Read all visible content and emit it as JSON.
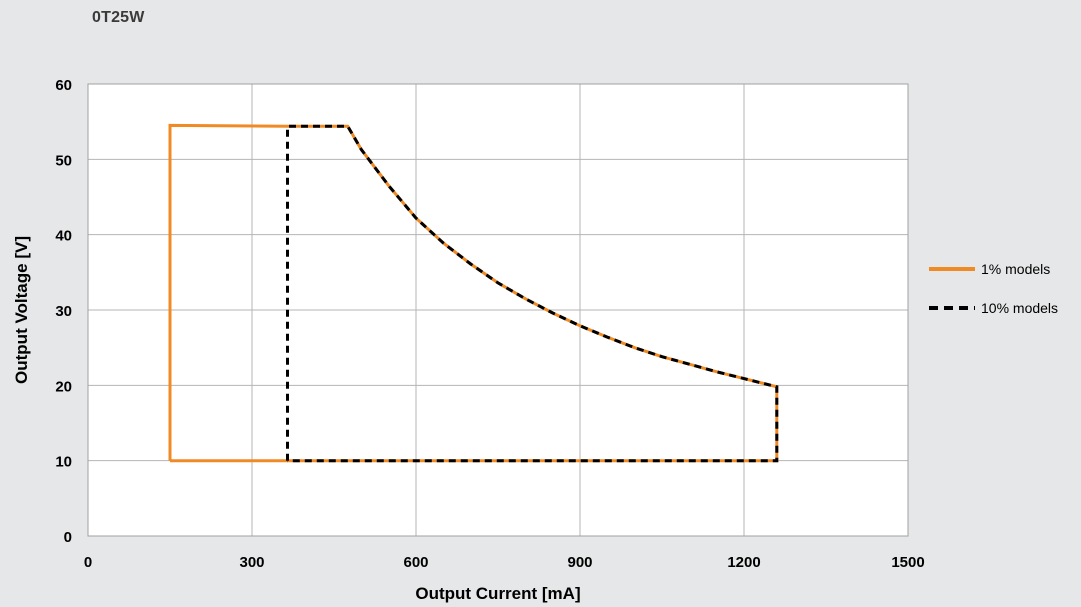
{
  "chart_data": {
    "type": "line",
    "title": "0T25W",
    "xlabel": "Output Current [mA]",
    "ylabel": "Output Voltage [V]",
    "xlim": [
      0,
      1500
    ],
    "ylim": [
      0,
      60
    ],
    "xticks": [
      0,
      300,
      600,
      900,
      1200,
      1500
    ],
    "yticks": [
      0,
      10,
      20,
      30,
      40,
      50,
      60
    ],
    "grid": true,
    "legend_position": "right",
    "series": [
      {
        "name": "1% models",
        "color": "#f08a24",
        "style": "solid",
        "points": [
          [
            150,
            10
          ],
          [
            150,
            54.5
          ],
          [
            365,
            54.4
          ],
          [
            475,
            54.4
          ],
          [
            500,
            51.3
          ],
          [
            550,
            46.5
          ],
          [
            600,
            42.2
          ],
          [
            650,
            38.9
          ],
          [
            700,
            36.1
          ],
          [
            750,
            33.6
          ],
          [
            800,
            31.5
          ],
          [
            850,
            29.6
          ],
          [
            900,
            27.9
          ],
          [
            950,
            26.4
          ],
          [
            1000,
            25.0
          ],
          [
            1050,
            23.8
          ],
          [
            1100,
            22.8
          ],
          [
            1150,
            21.8
          ],
          [
            1200,
            20.9
          ],
          [
            1260,
            19.8
          ],
          [
            1260,
            10
          ],
          [
            150,
            10
          ]
        ]
      },
      {
        "name": "10% models",
        "color": "#000000",
        "style": "dashed",
        "points": [
          [
            365,
            10
          ],
          [
            365,
            54.4
          ],
          [
            475,
            54.4
          ],
          [
            500,
            51.3
          ],
          [
            550,
            46.5
          ],
          [
            600,
            42.2
          ],
          [
            650,
            38.9
          ],
          [
            700,
            36.1
          ],
          [
            750,
            33.6
          ],
          [
            800,
            31.5
          ],
          [
            850,
            29.6
          ],
          [
            900,
            27.9
          ],
          [
            950,
            26.4
          ],
          [
            1000,
            25.0
          ],
          [
            1050,
            23.8
          ],
          [
            1100,
            22.8
          ],
          [
            1150,
            21.8
          ],
          [
            1200,
            20.9
          ],
          [
            1260,
            19.8
          ],
          [
            1260,
            10
          ],
          [
            365,
            10
          ]
        ]
      }
    ]
  }
}
